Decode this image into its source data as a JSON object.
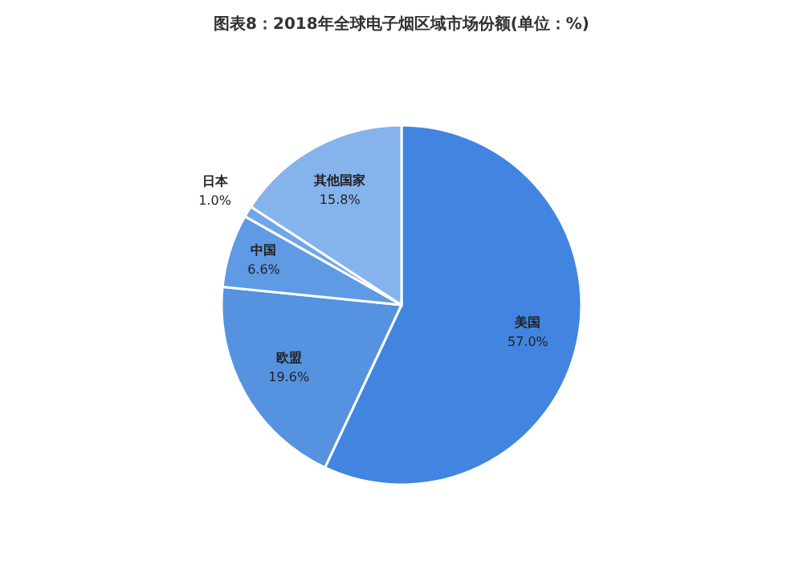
{
  "chart_data": {
    "type": "pie",
    "title": "图表8：2018年全球电子烟区域市场份额(单位：%)",
    "categories": [
      "美国",
      "欧盟",
      "中国",
      "日本",
      "其他国家"
    ],
    "values": [
      57.0,
      19.6,
      6.6,
      1.0,
      15.8
    ],
    "colors": [
      "#4285e0",
      "#5592e0",
      "#5f9ae4",
      "#6fa6e6",
      "#85b3ec"
    ],
    "value_labels": [
      "57.0%",
      "19.6%",
      "6.6%",
      "1.0%",
      "15.8%"
    ]
  }
}
